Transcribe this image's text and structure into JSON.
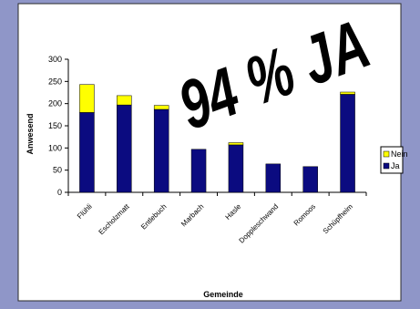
{
  "chart_data": {
    "type": "bar",
    "stacked": true,
    "categories": [
      "Flühli",
      "Escholzmatt",
      "Entlebuch",
      "Marbach",
      "Hasle",
      "Doppleschwand",
      "Romoos",
      "Schüpfheim"
    ],
    "series": [
      {
        "name": "Ja",
        "values": [
          180,
          197,
          187,
          97,
          107,
          64,
          58,
          221
        ],
        "color": "#0b0b80"
      },
      {
        "name": "Nein",
        "values": [
          63,
          21,
          9,
          0,
          5,
          0,
          0,
          5
        ],
        "color": "#ffff00"
      }
    ],
    "xlabel": "Gemeinde",
    "ylabel": "Anwesend",
    "ylim": [
      0,
      300
    ],
    "yticks": [
      0,
      50,
      100,
      150,
      200,
      250,
      300
    ],
    "grid": false,
    "legend": "right",
    "annotation": "94 % JA",
    "colors": {
      "background": "#8f96c8",
      "plot_frame": "#ffffff",
      "legend_border": "#000000"
    }
  }
}
